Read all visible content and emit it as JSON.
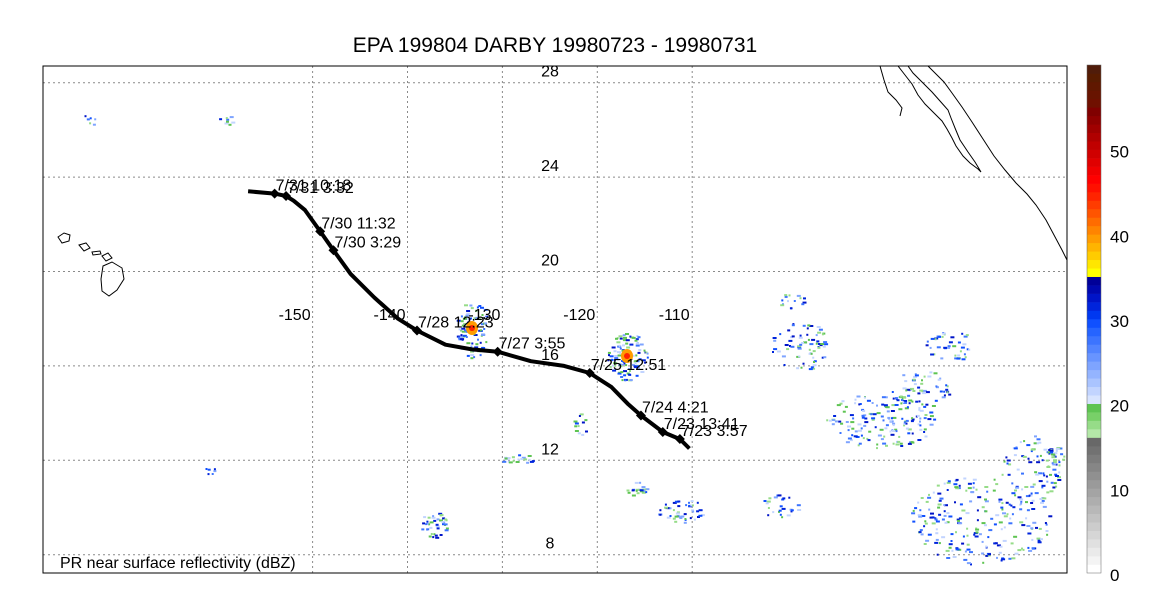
{
  "title": "EPA 199804 DARBY 19980723 - 19980731",
  "caption": "PR near surface reflectivity (dBZ)",
  "lon_ticks": [
    -150,
    -140,
    -130,
    -120,
    -110
  ],
  "lat_ticks": [
    28,
    24,
    20,
    16,
    12,
    8
  ],
  "track": [
    {
      "lon": -156.8,
      "lat": 23.4
    },
    {
      "lon": -154.0,
      "lat": 23.3,
      "label": "7/31 10:18"
    },
    {
      "lon": -152.8,
      "lat": 23.2,
      "label": "7/31 3:32"
    },
    {
      "lon": -152.0,
      "lat": 23.0
    },
    {
      "lon": -150.8,
      "lat": 22.6
    },
    {
      "lon": -149.2,
      "lat": 21.7,
      "label": "7/30 11:32"
    },
    {
      "lon": -147.8,
      "lat": 20.9,
      "label": "7/30 3:29"
    },
    {
      "lon": -146.0,
      "lat": 19.9
    },
    {
      "lon": -143.5,
      "lat": 18.9
    },
    {
      "lon": -141.0,
      "lat": 18.0
    },
    {
      "lon": -139.0,
      "lat": 17.5,
      "label": "7/28 12:23"
    },
    {
      "lon": -136.0,
      "lat": 16.9
    },
    {
      "lon": -133.2,
      "lat": 16.7
    },
    {
      "lon": -130.5,
      "lat": 16.6,
      "label": "7/27 3:55"
    },
    {
      "lon": -127.0,
      "lat": 16.2
    },
    {
      "lon": -123.5,
      "lat": 16.0
    },
    {
      "lon": -120.8,
      "lat": 15.7,
      "label": "7/25 12:51"
    },
    {
      "lon": -118.5,
      "lat": 15.1
    },
    {
      "lon": -116.8,
      "lat": 14.4
    },
    {
      "lon": -115.4,
      "lat": 13.9,
      "label": "7/24 4:21"
    },
    {
      "lon": -113.1,
      "lat": 13.2,
      "label": "7/23 13:41"
    },
    {
      "lon": -111.3,
      "lat": 12.9,
      "label": "7/23 3:57"
    },
    {
      "lon": -110.3,
      "lat": 12.5
    }
  ],
  "colorbar": {
    "min": 0,
    "max": 60,
    "tick_labels": [
      "0",
      "10",
      "20",
      "30",
      "40",
      "50"
    ],
    "colors": [
      "#ffffff",
      "#f4f4f4",
      "#eaeaea",
      "#e0e0e0",
      "#d6d6d6",
      "#cccccc",
      "#c2c2c2",
      "#b8b8b8",
      "#aeaeae",
      "#a4a4a4",
      "#9a9a9a",
      "#909090",
      "#868686",
      "#7c7c7c",
      "#727272",
      "#686868",
      "#b4e8a8",
      "#96dc88",
      "#78d068",
      "#5ec452",
      "#d8e4ff",
      "#c2d4ff",
      "#aac4ff",
      "#94b4ff",
      "#7ea4ff",
      "#6894ff",
      "#5284ff",
      "#3c74ff",
      "#2664ff",
      "#1050ff",
      "#0038f0",
      "#0024dc",
      "#0014c8",
      "#0008b0",
      "#000098",
      "#ffff00",
      "#ffe600",
      "#ffcc00",
      "#ffb400",
      "#ff9c00",
      "#ff8400",
      "#ff6c00",
      "#ff5400",
      "#ff3c00",
      "#ff2400",
      "#ff1000",
      "#ff0000",
      "#f00000",
      "#e00000",
      "#d00000",
      "#c00000",
      "#b00000",
      "#a00000",
      "#900000",
      "#800000",
      "#701000",
      "#681400",
      "#601800",
      "#581c00",
      "#501c0a"
    ]
  },
  "colors": {
    "track": "#000000",
    "coast": "#000000",
    "grid": "#8a8a8a"
  }
}
